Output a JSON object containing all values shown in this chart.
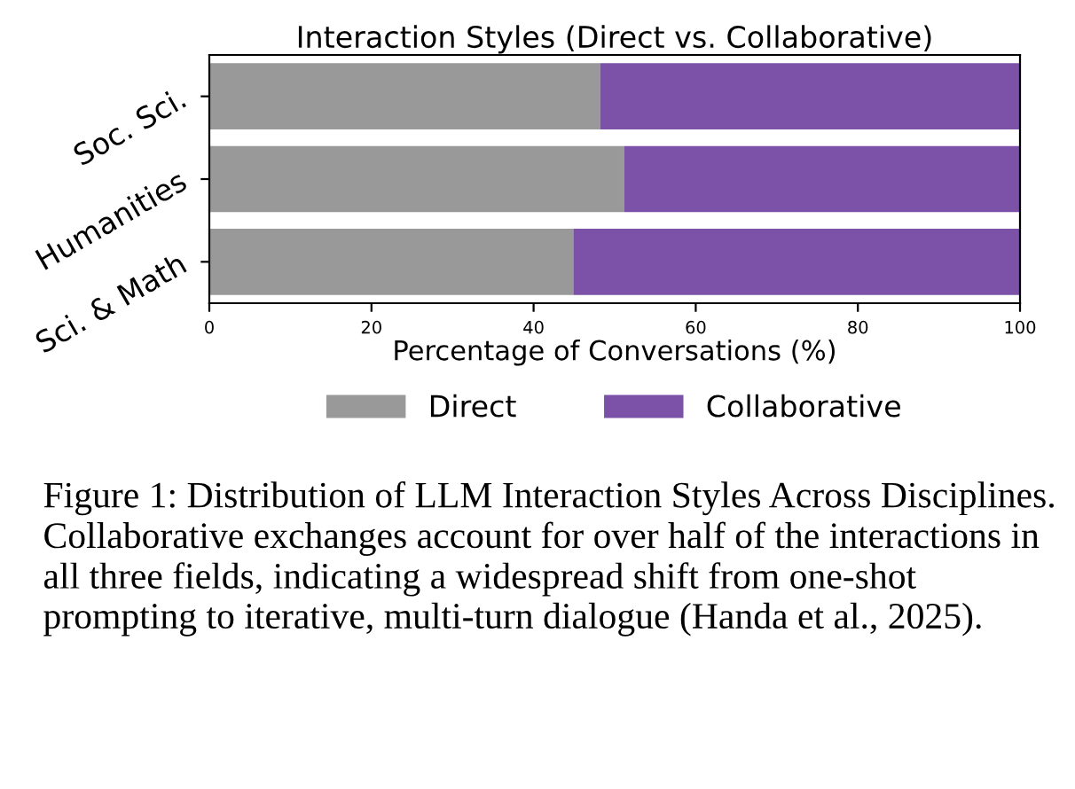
{
  "chart_data": {
    "type": "bar",
    "orientation": "horizontal",
    "stacked": true,
    "title": "Interaction Styles (Direct vs. Collaborative)",
    "xlabel": "Percentage of Conversations (%)",
    "categories": [
      "Soc. Sci.",
      "Humanities",
      "Sci. & Math"
    ],
    "series": [
      {
        "name": "Direct",
        "color": "#999999",
        "values": [
          48.2,
          51.2,
          44.9
        ]
      },
      {
        "name": "Collaborative",
        "color": "#7b52a8",
        "values": [
          51.8,
          48.8,
          55.1
        ]
      }
    ],
    "xlim": [
      0,
      100
    ],
    "xticks": [
      0,
      20,
      40,
      60,
      80,
      100
    ],
    "legend": "bottom",
    "grid": false,
    "annotations": [
      "Figure 1: Distribution of LLM Interaction Styles Across Disciplines. Collaborative exchanges account for over half of the interactions in all three fields, indicating a widespread shift from one-shot prompting to iterative, multi-turn dialogue (Handa et al., 2025)."
    ]
  }
}
